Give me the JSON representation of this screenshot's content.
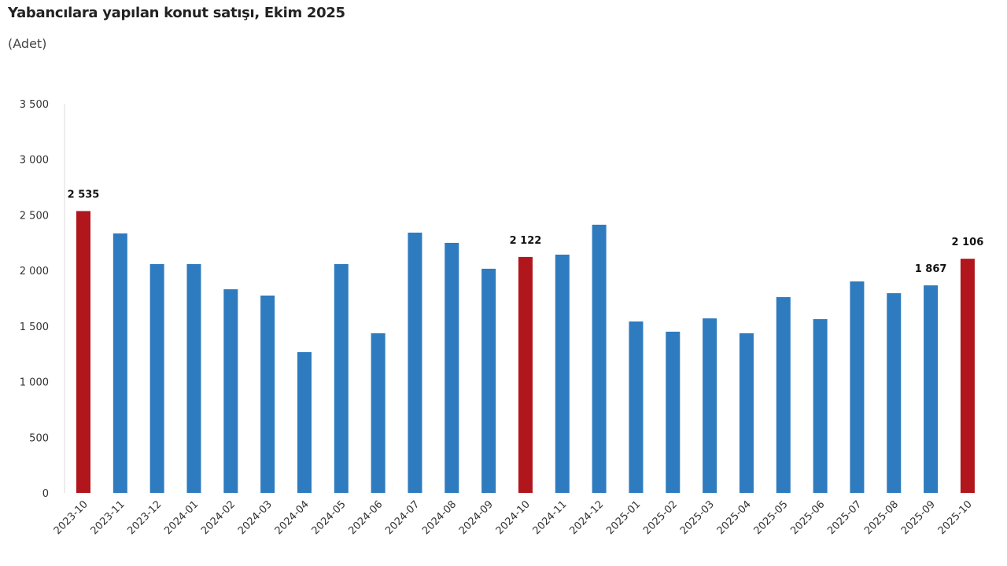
{
  "chart_data": {
    "type": "bar",
    "title": "Yabancılara yapılan konut satışı, Ekim 2025",
    "subtitle": "(Adet)",
    "xlabel": "",
    "ylabel": "",
    "ylim": [
      0,
      3500
    ],
    "yticks": [
      0,
      500,
      1000,
      1500,
      2000,
      2500,
      3000,
      3500
    ],
    "ytick_labels": [
      "0",
      "500",
      "1 000",
      "1 500",
      "2 000",
      "2 500",
      "3 000",
      "3 500"
    ],
    "grid": false,
    "categories": [
      "2023-10",
      "2023-11",
      "2023-12",
      "2024-01",
      "2024-02",
      "2024-03",
      "2024-04",
      "2024-05",
      "2024-06",
      "2024-07",
      "2024-08",
      "2024-09",
      "2024-10",
      "2024-11",
      "2024-12",
      "2025-01",
      "2025-02",
      "2025-03",
      "2025-04",
      "2025-05",
      "2025-06",
      "2025-07",
      "2025-08",
      "2025-09",
      "2025-10"
    ],
    "values": [
      2535,
      2334,
      2058,
      2058,
      1832,
      1775,
      1266,
      2058,
      1436,
      2341,
      2249,
      2016,
      2122,
      2143,
      2412,
      1542,
      1450,
      1570,
      1436,
      1761,
      1563,
      1902,
      1796,
      1867,
      2106
    ],
    "highlight": [
      true,
      false,
      false,
      false,
      false,
      false,
      false,
      false,
      false,
      false,
      false,
      false,
      true,
      false,
      false,
      false,
      false,
      false,
      false,
      false,
      false,
      false,
      false,
      false,
      true
    ],
    "data_labels": {
      "0": "2 535",
      "12": "2 122",
      "23": "1 867",
      "24": "2 106"
    },
    "colors": {
      "default": "#2e7bbf",
      "highlight": "#b0161c",
      "axis": "#d9d9d9"
    }
  }
}
